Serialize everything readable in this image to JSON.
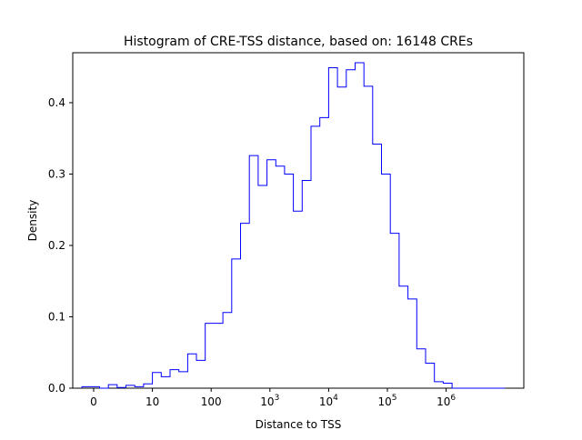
{
  "chart_data": {
    "type": "histogram",
    "title": "Histogram of CRE-TSS distance, based on: 16148 CREs",
    "xlabel": "Distance to TSS",
    "ylabel": "Density",
    "x_scale": "log (symlog-style: linear near 0)",
    "y_range": [
      0.0,
      0.47
    ],
    "x_ticks": [
      {
        "value": 0,
        "label": "0"
      },
      {
        "value": 10,
        "label": "10"
      },
      {
        "value": 100,
        "label": "100"
      },
      {
        "value": 1000,
        "base": "10",
        "exp": "3"
      },
      {
        "value": 10000,
        "base": "10",
        "exp": "4"
      },
      {
        "value": 100000,
        "base": "10",
        "exp": "5"
      },
      {
        "value": 1000000,
        "base": "10",
        "exp": "6"
      }
    ],
    "y_ticks": [
      {
        "value": 0.0,
        "label": "0.0"
      },
      {
        "value": 0.1,
        "label": "0.1"
      },
      {
        "value": 0.2,
        "label": "0.2"
      },
      {
        "value": 0.3,
        "label": "0.3"
      },
      {
        "value": 0.4,
        "label": "0.4"
      }
    ],
    "series": [
      {
        "color": "#0000ff",
        "bin_edges_log10": [
          -0.2,
          -0.05,
          0.1,
          0.25,
          0.4,
          0.55,
          0.7,
          0.85,
          1.0,
          1.15,
          1.3,
          1.45,
          1.6,
          1.75,
          1.9,
          2.05,
          2.2,
          2.35,
          2.5,
          2.65,
          2.8,
          2.95,
          3.1,
          3.25,
          3.4,
          3.55,
          3.7,
          3.85,
          4.0,
          4.15,
          4.3,
          4.45,
          4.6,
          4.75,
          4.9,
          5.05,
          5.2,
          5.35,
          5.5,
          5.65,
          5.8,
          5.95,
          6.1,
          6.25,
          6.4,
          6.55,
          6.7,
          6.85,
          7.0
        ],
        "density": [
          0.002,
          0.002,
          0.0,
          0.005,
          0.001,
          0.004,
          0.002,
          0.006,
          0.022,
          0.016,
          0.026,
          0.023,
          0.048,
          0.039,
          0.091,
          0.091,
          0.106,
          0.181,
          0.231,
          0.326,
          0.284,
          0.32,
          0.311,
          0.3,
          0.248,
          0.291,
          0.367,
          0.379,
          0.449,
          0.422,
          0.446,
          0.456,
          0.423,
          0.342,
          0.3,
          0.217,
          0.143,
          0.125,
          0.055,
          0.035,
          0.009,
          0.007,
          0.0,
          0.0,
          0.0,
          0.0,
          0.0,
          0.0
        ]
      }
    ]
  }
}
